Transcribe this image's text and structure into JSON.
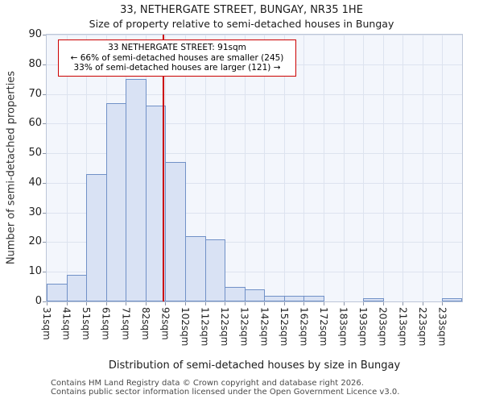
{
  "annotation": {
    "line1": "33 NETHERGATE STREET: 91sqm",
    "line2": "← 66% of semi-detached houses are smaller (245)",
    "line3": "33% of semi-detached houses are larger (121) →"
  },
  "footer": {
    "line1": "Contains HM Land Registry data © Crown copyright and database right 2026.",
    "line2": "Contains public sector information licensed under the Open Government Licence v3.0."
  },
  "chart_data": {
    "type": "bar",
    "title": "33, NETHERGATE STREET, BUNGAY, NR35 1HE",
    "subtitle": "Size of property relative to semi-detached houses in Bungay",
    "xlabel": "Distribution of semi-detached houses by size in Bungay",
    "ylabel": "Number of semi-detached properties",
    "categories": [
      "31sqm",
      "41sqm",
      "51sqm",
      "61sqm",
      "71sqm",
      "82sqm",
      "92sqm",
      "102sqm",
      "112sqm",
      "122sqm",
      "132sqm",
      "142sqm",
      "152sqm",
      "162sqm",
      "172sqm",
      "183sqm",
      "193sqm",
      "203sqm",
      "213sqm",
      "223sqm",
      "233sqm"
    ],
    "values": [
      6,
      9,
      43,
      67,
      75,
      66,
      47,
      22,
      21,
      5,
      4,
      2,
      2,
      2,
      0,
      0,
      1,
      0,
      0,
      0,
      1
    ],
    "ylim": [
      0,
      90
    ],
    "ytick_step": 10,
    "grid": true,
    "legend": null,
    "marker": {
      "label": "91sqm",
      "value": 91,
      "bin_index": 5,
      "fraction": 0.9,
      "color": "#cc0000"
    },
    "colors": {
      "bar_fill": "#d9e2f4",
      "bar_border": "#7191c7",
      "grid": "#dde3ef",
      "plot_bg": "#f3f6fc",
      "spine": "#bcc6d8",
      "marker": "#cc0000"
    }
  }
}
